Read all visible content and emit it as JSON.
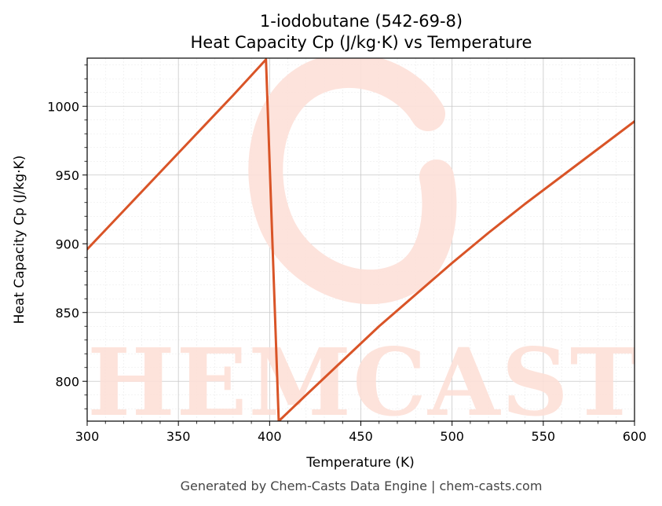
{
  "chart_data": {
    "type": "line",
    "title_line1": "1-iodobutane (542-69-8)",
    "title_line2": "Heat Capacity Cp (J/kg·K) vs Temperature",
    "xlabel": "Temperature (K)",
    "ylabel": "Heat Capacity Cp (J/kg·K)",
    "xlim": [
      300,
      600
    ],
    "ylim": [
      771,
      1035
    ],
    "xticks": [
      300,
      350,
      400,
      450,
      500,
      550,
      600
    ],
    "yticks": [
      800,
      850,
      900,
      950,
      1000
    ],
    "grid": true,
    "series": [
      {
        "color": "#d95427",
        "x": [
          300,
          320,
          340,
          360,
          380,
          398,
          405,
          420,
          440,
          460,
          480,
          500,
          520,
          540,
          560,
          580,
          600
        ],
        "y": [
          896,
          924,
          952,
          980,
          1008,
          1034,
          771,
          790,
          815,
          840,
          863,
          886,
          908,
          929,
          949,
          969,
          989
        ]
      }
    ]
  },
  "footer": "Generated by Chem-Casts Data Engine | chem-casts.com",
  "watermark": "CHEMCASTS"
}
